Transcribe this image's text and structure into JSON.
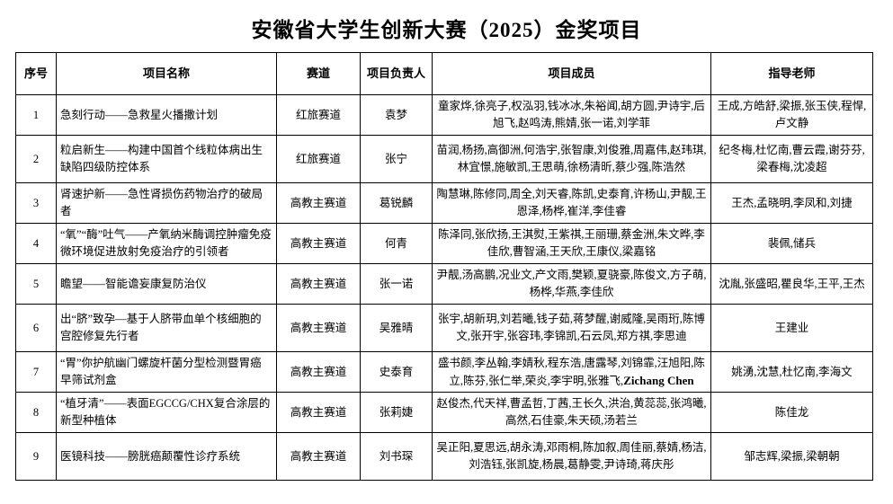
{
  "title": "安徽省大学生创新大赛（2025）金奖项目",
  "table": {
    "headers": [
      "序号",
      "项目名称",
      "赛道",
      "项目负责人",
      "项目成员",
      "指导老师"
    ],
    "rows": [
      {
        "no": "1",
        "name": "急刻行动——急救星火播撒计划",
        "track": "红旅赛道",
        "leader": "袁梦",
        "members": "童家烨,徐亮子,权泓羽,钱冰冰,朱裕闻,胡方圆,尹诗宇,后旭飞,赵鸣涛,熊婧,张一诺,刘学菲",
        "teachers": "王成,方皓舒,梁振,张玉侠,程悍,卢文静"
      },
      {
        "no": "2",
        "name": "粒启新生——构建中国首个线粒体病出生缺陷四级防控体系",
        "track": "红旅赛道",
        "leader": "张宁",
        "members": "苗润,杨扬,高御洲,何浩宇,张智康,刘俊雅,周嘉伟,赵玮琪,林宜憬,施敏凯,王思萌,徐杨清昕,蔡少强,陈浩然",
        "teachers": "纪冬梅,杜忆南,曹云霞,谢芬芬,梁春梅,沈凌超"
      },
      {
        "no": "3",
        "name": "肾速护新——急性肾损伤药物治疗的破局者",
        "track": "高教主赛道",
        "leader": "葛锐麟",
        "members": "陶慧琳,陈修同,周全,刘天睿,陈凯,史泰育,许杨山,尹靓,王恩泽,杨桦,崔洋,李佳睿",
        "teachers": "王杰,孟晓明,李凤和,刘捷"
      },
      {
        "no": "4",
        "name": "“氧”“酶”吐气——产氧纳米酶调控肿瘤免疫微环境促进放射免疫治疗的引领者",
        "track": "高教主赛道",
        "leader": "何青",
        "members": "陈泽同,张欣扬,王淇熨,王紫祺,王丽珊,蔡金洲,朱文晔,李佳欣,曹智涵,王天欣,王康仪,梁嘉铭",
        "teachers": "裴佩,储兵"
      },
      {
        "no": "5",
        "name": "瞻望——智能谵妄康复防治仪",
        "track": "高教主赛道",
        "leader": "张一诺",
        "members": "尹靓,汤高鹏,况业文,产文雨,樊颖,夏骁豪,陈俊文,方子萌,杨桦,华燕,李佳欣",
        "teachers": "沈胤,张盛昭,瞿良华,王平,王杰"
      },
      {
        "no": "6",
        "name": "出“脐”致孕—基于人脐带血单个核细胞的宫腔修复先行者",
        "track": "高教主赛道",
        "leader": "吴雅晴",
        "members": "张宇,胡新玥,刘若曦,钱子茹,蒋梦醒,谢威隆,吴雨珩,陈博文,张开宇,张容玮,李锦凯,石云凤,郑方祺,李思迪",
        "teachers": "王建业"
      },
      {
        "no": "7",
        "name": "“胃”你护航幽门螺旋杆菌分型检测暨胃癌早筛试剂盒",
        "track": "高教主赛道",
        "leader": "史泰育",
        "members": "盛书颜,李丛翰,李婧秋,程东浩,唐露琴,刘锦霏,汪旭阳,陈立,陈芬,张仁举,荣炎,李宇明,张雅飞,",
        "members_en": "Zichang Chen",
        "teachers": "姚湧,沈慧,杜忆南,李海文"
      },
      {
        "no": "8",
        "name": "“植牙清”——表面EGCCG/CHX复合涂层的新型种植体",
        "track": "高教主赛道",
        "leader": "张莉婕",
        "members": "赵俊杰,代天祥,曹孟哲,丁茜,王长久,洪治,黄蕊蕊,张鸿曦,高然,石佳豪,朱天硕,汤若兰",
        "teachers": "陈佳龙"
      },
      {
        "no": "9",
        "name": "医镜科技——膀胱癌颠覆性诊疗系统",
        "track": "高教主赛道",
        "leader": "刘书琛",
        "members": "吴正阳,夏思远,胡永涛,邓雨桐,陈加叙,周佳丽,蔡婧,杨洁,刘浩钰,张凯旋,杨晨,葛静雯,尹诗琦,蒋庆彤",
        "teachers": "邹志辉,梁振,梁朝朝"
      }
    ]
  }
}
